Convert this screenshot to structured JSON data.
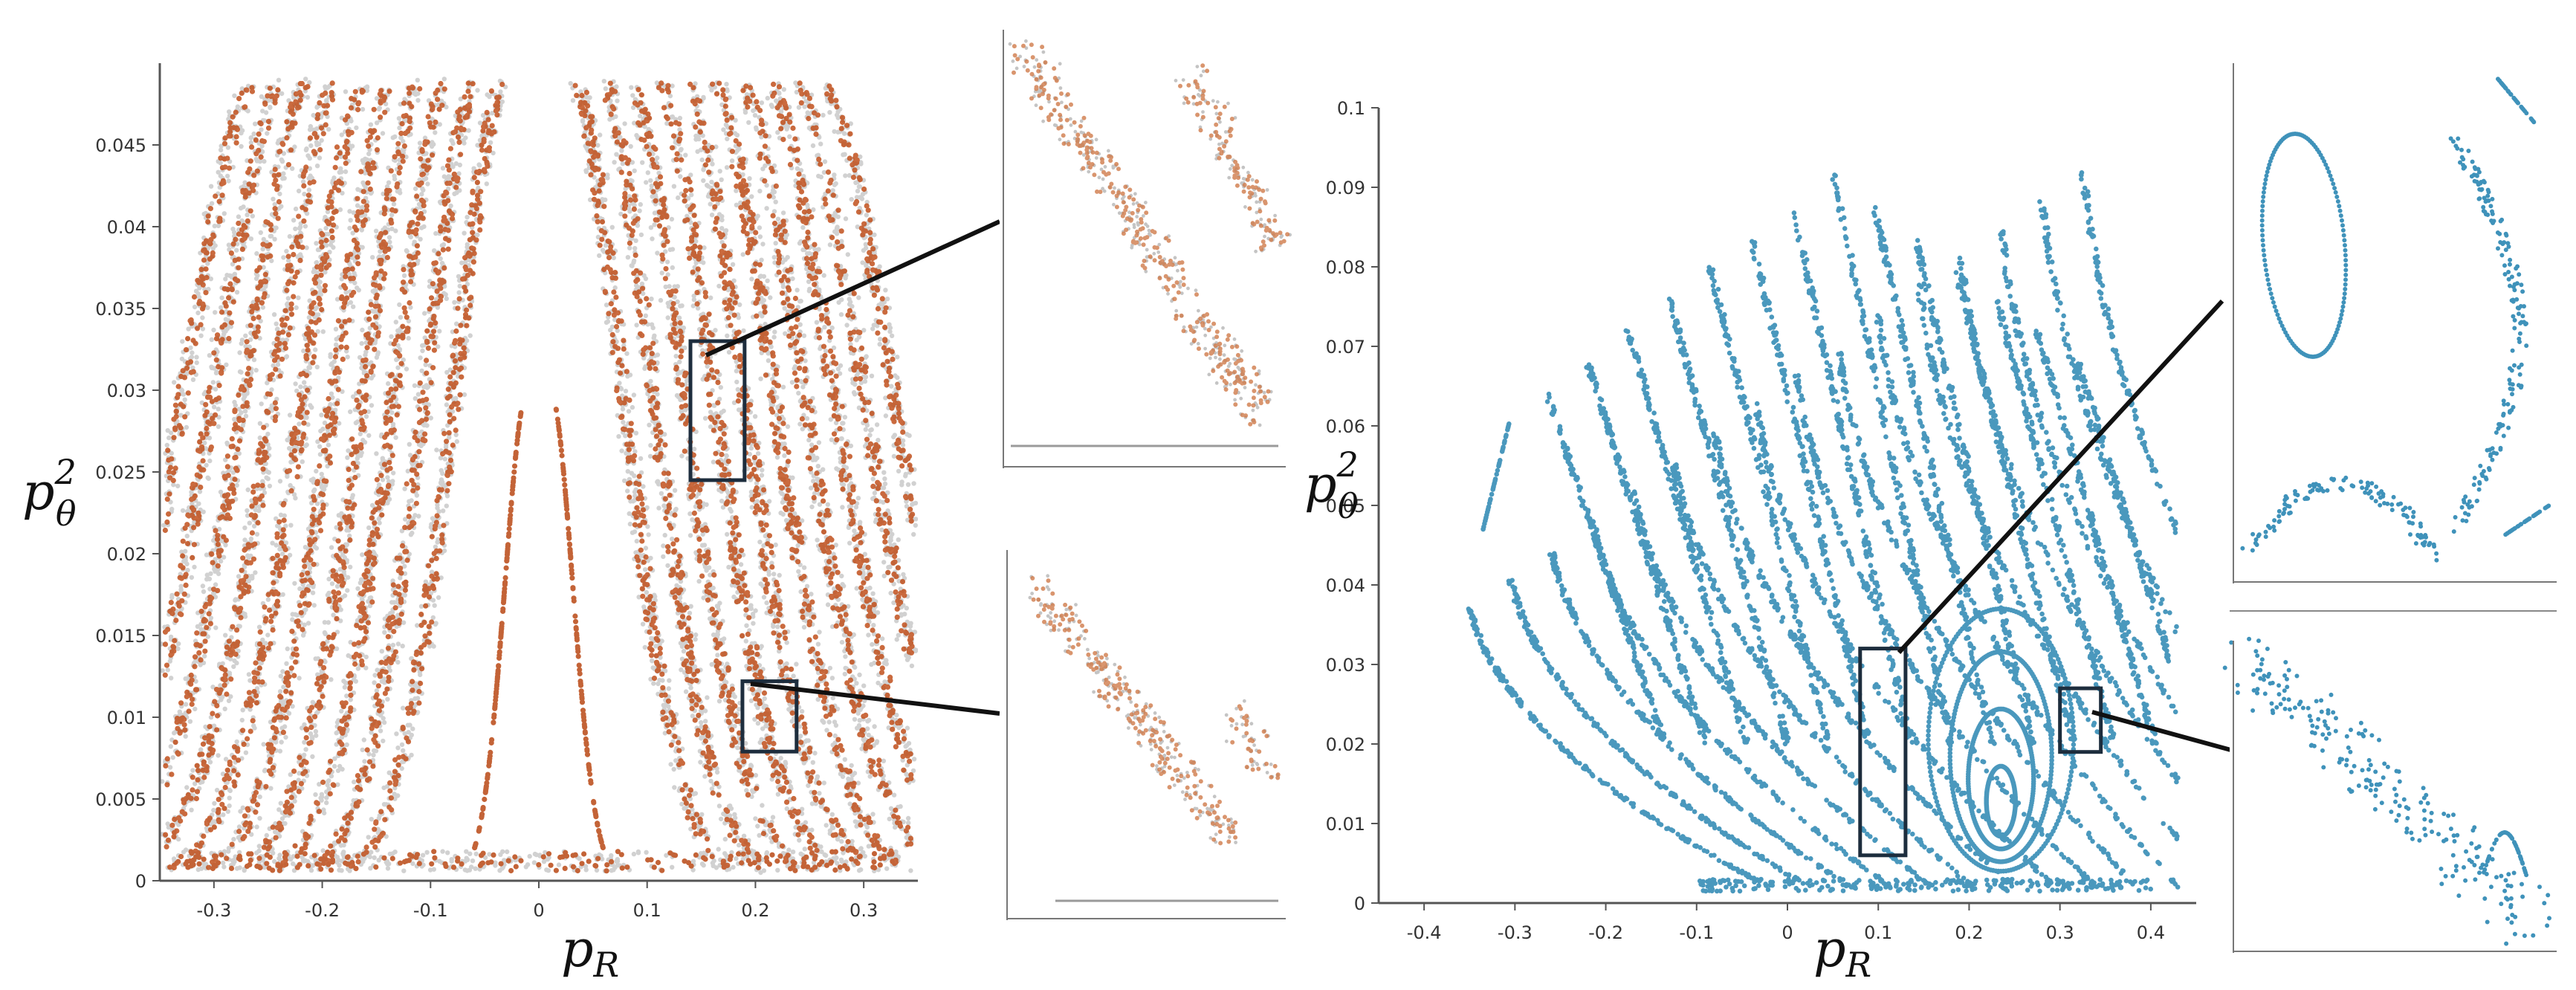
{
  "chart_data": [
    {
      "type": "scatter",
      "xlabel": "p",
      "xlabel_sub": "R",
      "ylabel": "p",
      "ylabel_sup": "2",
      "ylabel_sub": "θ",
      "xlim": [
        -0.35,
        0.35
      ],
      "ylim": [
        0,
        0.05
      ],
      "xticks": [
        "-0.3",
        "-0.2",
        "-0.1",
        "0",
        "0.1",
        "0.2",
        "0.3"
      ],
      "yticks": [
        "0",
        "0.005",
        "0.01",
        "0.015",
        "0.02",
        "0.025",
        "0.03",
        "0.035",
        "0.04",
        "0.045"
      ],
      "color": "#c1501c",
      "zoom_boxes": [
        {
          "x0": 0.14,
          "x1": 0.19,
          "y0": 0.0245,
          "y1": 0.033
        },
        {
          "x0": 0.188,
          "x1": 0.238,
          "y0": 0.0079,
          "y1": 0.0122
        }
      ]
    },
    {
      "type": "scatter",
      "xlabel": "p",
      "xlabel_sub": "R",
      "ylabel": "p",
      "ylabel_sup": "2",
      "ylabel_sub": "θ",
      "xlim": [
        -0.45,
        0.45
      ],
      "ylim": [
        0,
        0.1
      ],
      "xticks": [
        "-0.4",
        "-0.3",
        "-0.2",
        "-0.1",
        "0",
        "0.1",
        "0.2",
        "0.3",
        "0.4"
      ],
      "yticks": [
        "0",
        "0.01",
        "0.02",
        "0.03",
        "0.04",
        "0.05",
        "0.06",
        "0.07",
        "0.08",
        "0.09",
        "0.1"
      ],
      "color": "#2a86b2",
      "zoom_boxes": [
        {
          "x0": 0.08,
          "x1": 0.13,
          "y0": 0.006,
          "y1": 0.032
        },
        {
          "x0": 0.3,
          "x1": 0.345,
          "y0": 0.019,
          "y1": 0.027
        }
      ]
    }
  ]
}
